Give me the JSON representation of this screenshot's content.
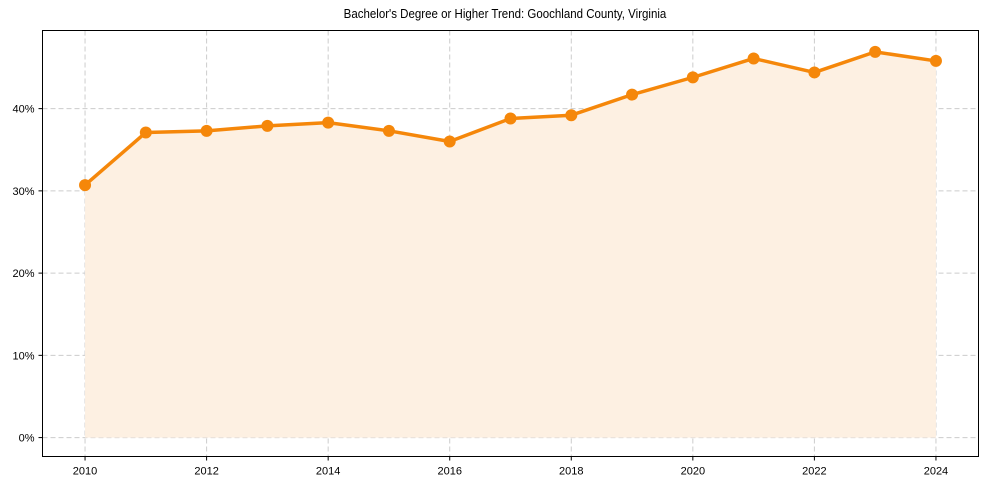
{
  "chart_data": {
    "type": "line",
    "title": "Bachelor's Degree or Higher Trend: Goochland County, Virginia",
    "xlabel": "",
    "ylabel": "",
    "x": [
      2010,
      2011,
      2012,
      2013,
      2014,
      2015,
      2016,
      2017,
      2018,
      2019,
      2020,
      2021,
      2022,
      2023,
      2024
    ],
    "series": [
      {
        "name": "Bachelor's Degree or Higher (%)",
        "values": [
          30.7,
          37.1,
          37.3,
          37.9,
          38.3,
          37.3,
          36.0,
          38.8,
          39.2,
          41.7,
          43.8,
          46.1,
          44.4,
          46.9,
          45.8
        ],
        "color": "#f5870a",
        "fill_color": "#fdf0e2",
        "marker": "circle"
      }
    ],
    "x_ticks": [
      "2010",
      "2012",
      "2014",
      "2016",
      "2018",
      "2020",
      "2022",
      "2024"
    ],
    "y_ticks": [
      "0%",
      "10%",
      "20%",
      "30%",
      "40%"
    ],
    "xlim": [
      2009.3,
      2024.7
    ],
    "ylim": [
      -2.3,
      49.5
    ],
    "grid": true,
    "legend": null
  }
}
